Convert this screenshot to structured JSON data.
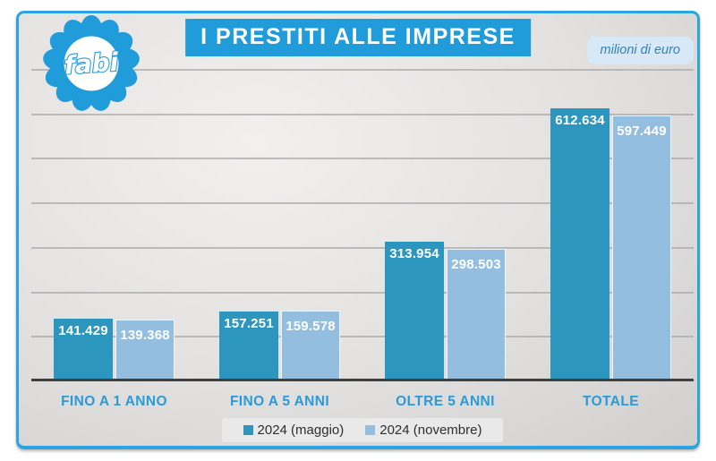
{
  "header": {
    "title": "I PRESTITI ALLE IMPRESE",
    "unit_badge": "milioni di euro",
    "logo_text": "fabi"
  },
  "chart_data": {
    "type": "bar",
    "title": "I PRESTITI ALLE IMPRESE",
    "unit": "milioni di euro",
    "categories": [
      "FINO A 1 ANNO",
      "FINO A 5 ANNI",
      "OLTRE 5 ANNI",
      "TOTALE"
    ],
    "series": [
      {
        "name": "2024 (maggio)",
        "color": "#2C96BF",
        "values": [
          141429,
          157251,
          313954,
          612634
        ],
        "value_labels": [
          "141.429",
          "157.251",
          "313.954",
          "612.634"
        ]
      },
      {
        "name": "2024 (novembre)",
        "color": "#93BEE0",
        "values": [
          139368,
          159578,
          298503,
          597449
        ],
        "value_labels": [
          "139.368",
          "159.578",
          "298.503",
          "597.449"
        ]
      }
    ],
    "ylim": [
      0,
      700000
    ],
    "gridline_step": 100000,
    "grid": true,
    "legend_position": "bottom",
    "y_axis_labels_visible": false
  },
  "colors": {
    "accent_blue": "#1F9CD9",
    "frame_border": "#2CA4DF",
    "category_label": "#2B9AD5",
    "badge_bg": "#D7E8F7",
    "badge_text": "#3380B5",
    "axis_line": "#3F3F3F",
    "gridline": "#ABABAB",
    "legend_bg": "#E9E9E9",
    "legend_text": "#2F2F2F",
    "value_label": "#FFFFFF"
  }
}
